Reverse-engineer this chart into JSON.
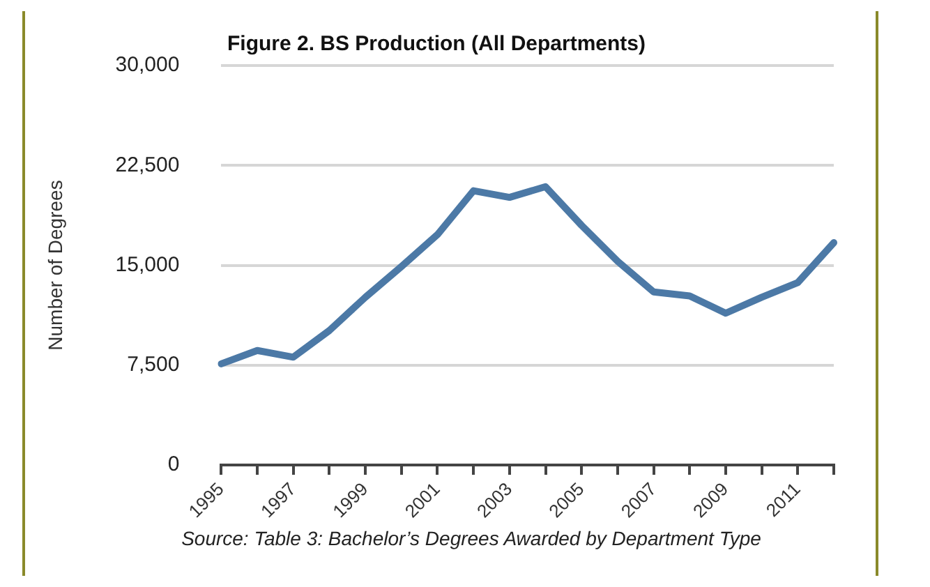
{
  "chart_data": {
    "type": "line",
    "title": "Figure 2. BS Production (All Departments)",
    "ylabel": "Number of Degrees",
    "categories": [
      "1995",
      null,
      "1997",
      null,
      "1999",
      null,
      "2001",
      null,
      "2003",
      null,
      "2005",
      null,
      "2007",
      null,
      "2009",
      null,
      "2011",
      null
    ],
    "series": [
      {
        "color": "#4c79a6",
        "values": [
          7600,
          8600,
          8100,
          10100,
          12600,
          14900,
          17300,
          20600,
          20100,
          20900,
          18000,
          15300,
          13000,
          12700,
          11400,
          12600,
          13700,
          16700
        ]
      }
    ],
    "ylim": [
      0,
      30000
    ],
    "yticks": [
      {
        "value": 0,
        "label": "0"
      },
      {
        "value": 7500,
        "label": "7,500"
      },
      {
        "value": 15000,
        "label": "15,000"
      },
      {
        "value": 22500,
        "label": "22,500"
      },
      {
        "value": 30000,
        "label": "30,000"
      }
    ],
    "grid": "y",
    "legend": false,
    "marker": "none",
    "line_style": "solid",
    "annotations": [
      "Source: Table 3: Bachelor’s Degrees Awarded by Department Type"
    ]
  }
}
